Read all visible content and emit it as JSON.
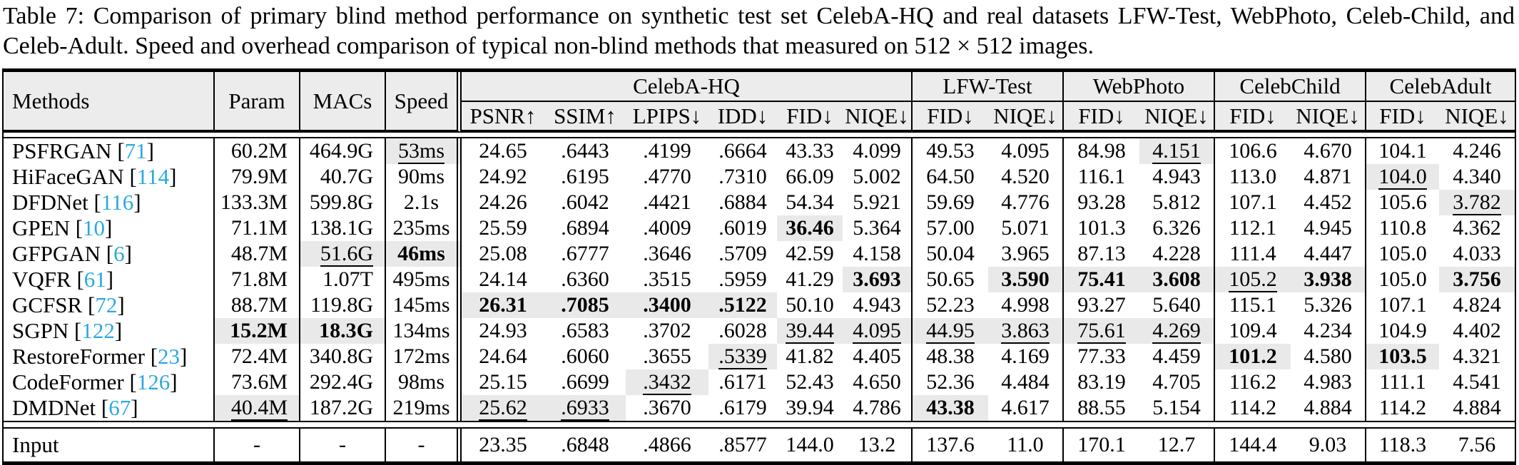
{
  "caption": "Table 7: Comparison of primary blind method performance on synthetic test set CelebA-HQ and real datasets LFW-Test, WebPhoto, Celeb-Child, and Celeb-Adult. Speed and overhead comparison of typical non-blind methods that measured on 512 × 512 images.",
  "accent_color": "#2aa9e0",
  "table": {
    "columns": {
      "methods": "Methods",
      "param": "Param",
      "macs": "MACs",
      "speed": "Speed"
    },
    "groups": [
      {
        "label": "CelebA-HQ",
        "metrics": [
          "PSNR↑",
          "SSIM↑",
          "LPIPS↓",
          "IDD↓",
          "FID↓",
          "NIQE↓"
        ]
      },
      {
        "label": "LFW-Test",
        "metrics": [
          "FID↓",
          "NIQE↓"
        ]
      },
      {
        "label": "WebPhoto",
        "metrics": [
          "FID↓",
          "NIQE↓"
        ]
      },
      {
        "label": "CelebChild",
        "metrics": [
          "FID↓",
          "NIQE↓"
        ]
      },
      {
        "label": "CelebAdult",
        "metrics": [
          "FID↓",
          "NIQE↓"
        ]
      }
    ],
    "rows": [
      {
        "method": "PSFRGAN",
        "cite": "71",
        "cells": [
          "60.2M",
          "464.9G",
          {
            "v": "53ms",
            "s": "u"
          },
          "24.65",
          ".6443",
          ".4199",
          ".6664",
          "43.33",
          "4.099",
          "49.53",
          "4.095",
          "84.98",
          {
            "v": "4.151",
            "s": "u"
          },
          "106.6",
          "4.670",
          "104.1",
          "4.246"
        ]
      },
      {
        "method": "HiFaceGAN",
        "cite": "114",
        "cells": [
          "79.9M",
          "40.7G",
          "90ms",
          "24.92",
          ".6195",
          ".4770",
          ".7310",
          "66.09",
          "5.002",
          "64.50",
          "4.520",
          "116.1",
          "4.943",
          "113.0",
          "4.871",
          {
            "v": "104.0",
            "s": "u"
          },
          "4.340"
        ]
      },
      {
        "method": "DFDNet",
        "cite": "116",
        "cells": [
          "133.3M",
          "599.8G",
          "2.1s",
          "24.26",
          ".6042",
          ".4421",
          ".6884",
          "54.34",
          "5.921",
          "59.69",
          "4.776",
          "93.28",
          "5.812",
          "107.1",
          "4.452",
          "105.6",
          {
            "v": "3.782",
            "s": "u"
          }
        ]
      },
      {
        "method": "GPEN",
        "cite": "10",
        "cells": [
          "71.1M",
          "138.1G",
          "235ms",
          "25.59",
          ".6894",
          ".4009",
          ".6019",
          {
            "v": "36.46",
            "s": "b"
          },
          "5.364",
          "57.00",
          "5.071",
          "101.3",
          "6.326",
          "112.1",
          "4.945",
          "110.8",
          "4.362"
        ]
      },
      {
        "method": "GFPGAN",
        "cite": "6",
        "cells": [
          "48.7M",
          {
            "v": "51.6G",
            "s": "u"
          },
          {
            "v": "46ms",
            "s": "b"
          },
          "25.08",
          ".6777",
          ".3646",
          ".5709",
          "42.59",
          "4.158",
          "50.04",
          "3.965",
          "87.13",
          "4.228",
          "111.4",
          "4.447",
          "105.0",
          "4.033"
        ]
      },
      {
        "method": "VQFR",
        "cite": "61",
        "cells": [
          "71.8M",
          "1.07T",
          "495ms",
          "24.14",
          ".6360",
          ".3515",
          ".5959",
          "41.29",
          {
            "v": "3.693",
            "s": "b"
          },
          "50.65",
          {
            "v": "3.590",
            "s": "b"
          },
          {
            "v": "75.41",
            "s": "b"
          },
          {
            "v": "3.608",
            "s": "b"
          },
          {
            "v": "105.2",
            "s": "u"
          },
          {
            "v": "3.938",
            "s": "b"
          },
          "105.0",
          {
            "v": "3.756",
            "s": "b"
          }
        ]
      },
      {
        "method": "GCFSR",
        "cite": "72",
        "cells": [
          "88.7M",
          "119.8G",
          "145ms",
          {
            "v": "26.31",
            "s": "b"
          },
          {
            "v": ".7085",
            "s": "b"
          },
          {
            "v": ".3400",
            "s": "b"
          },
          {
            "v": ".5122",
            "s": "b"
          },
          "50.10",
          "4.943",
          "52.23",
          "4.998",
          "93.27",
          "5.640",
          "115.1",
          "5.326",
          "107.1",
          "4.824"
        ]
      },
      {
        "method": "SGPN",
        "cite": "122",
        "cells": [
          {
            "v": "15.2M",
            "s": "b"
          },
          {
            "v": "18.3G",
            "s": "b"
          },
          "134ms",
          "24.93",
          ".6583",
          ".3702",
          ".6028",
          {
            "v": "39.44",
            "s": "u"
          },
          {
            "v": "4.095",
            "s": "u"
          },
          {
            "v": "44.95",
            "s": "u"
          },
          {
            "v": "3.863",
            "s": "u"
          },
          {
            "v": "75.61",
            "s": "u"
          },
          {
            "v": "4.269",
            "s": "u"
          },
          "109.4",
          "4.234",
          "104.9",
          "4.402"
        ]
      },
      {
        "method": "RestoreFormer",
        "cite": "23",
        "cells": [
          "72.4M",
          "340.8G",
          "172ms",
          "24.64",
          ".6060",
          ".3655",
          {
            "v": ".5339",
            "s": "u"
          },
          "41.82",
          "4.405",
          "48.38",
          "4.169",
          "77.33",
          "4.459",
          {
            "v": "101.2",
            "s": "b"
          },
          "4.580",
          {
            "v": "103.5",
            "s": "b"
          },
          "4.321"
        ]
      },
      {
        "method": "CodeFormer",
        "cite": "126",
        "cells": [
          "73.6M",
          "292.4G",
          "98ms",
          "25.15",
          ".6699",
          {
            "v": ".3432",
            "s": "u"
          },
          ".6171",
          "52.43",
          "4.650",
          "52.36",
          "4.484",
          "83.19",
          "4.705",
          "116.2",
          "4.983",
          "111.1",
          "4.541"
        ]
      },
      {
        "method": "DMDNet",
        "cite": "67",
        "cells": [
          {
            "v": "40.4M",
            "s": "u"
          },
          "187.2G",
          "219ms",
          {
            "v": "25.62",
            "s": "u"
          },
          {
            "v": ".6933",
            "s": "u"
          },
          ".3670",
          ".6179",
          "39.94",
          "4.786",
          {
            "v": "43.38",
            "s": "b"
          },
          "4.617",
          "88.55",
          "5.154",
          "114.2",
          "4.884",
          "114.2",
          "4.884"
        ]
      }
    ],
    "input_row": {
      "method": "Input",
      "cells": [
        "-",
        "-",
        "-",
        "23.35",
        ".6848",
        ".4866",
        ".8577",
        "144.0",
        "13.2",
        "137.6",
        "11.0",
        "170.1",
        "12.7",
        "144.4",
        "9.03",
        "118.3",
        "7.56"
      ]
    }
  }
}
